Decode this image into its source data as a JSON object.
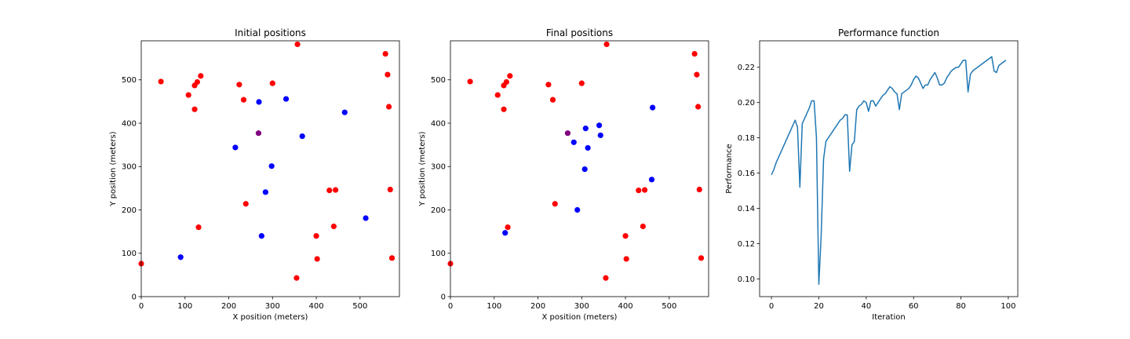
{
  "chart_data": [
    {
      "type": "scatter",
      "title": "Initial positions",
      "xlabel": "X position (meters)",
      "ylabel": "Y position (meters)",
      "xlim": [
        0,
        590
      ],
      "ylim": [
        0,
        590
      ],
      "xticks": [
        0,
        100,
        200,
        300,
        400,
        500
      ],
      "yticks": [
        0,
        100,
        200,
        300,
        400,
        500
      ],
      "grid": false,
      "colors": {
        "red": "#ff0000",
        "blue": "#0000ff",
        "purple": "#800080"
      },
      "series": [
        {
          "name": "red",
          "color": "#ff0000",
          "points": [
            [
              45,
              496
            ],
            [
              108,
              465
            ],
            [
              122,
              432
            ],
            [
              122,
              487
            ],
            [
              128,
              495
            ],
            [
              136,
              509
            ],
            [
              224,
              489
            ],
            [
              234,
              454
            ],
            [
              300,
              492
            ],
            [
              357,
              582
            ],
            [
              0,
              76
            ],
            [
              131,
              160
            ],
            [
              239,
              214
            ],
            [
              355,
              43
            ],
            [
              400,
              140
            ],
            [
              402,
              87
            ],
            [
              430,
              245
            ],
            [
              440,
              162
            ],
            [
              444,
              246
            ],
            [
              558,
              560
            ],
            [
              563,
              512
            ],
            [
              566,
              438
            ],
            [
              569,
              247
            ],
            [
              573,
              89
            ]
          ]
        },
        {
          "name": "blue",
          "color": "#0000ff",
          "points": [
            [
              269,
              449
            ],
            [
              331,
              456
            ],
            [
              465,
              425
            ],
            [
              368,
              370
            ],
            [
              215,
              344
            ],
            [
              298,
              301
            ],
            [
              284,
              241
            ],
            [
              513,
              181
            ],
            [
              275,
              140
            ],
            [
              90,
              91
            ]
          ]
        },
        {
          "name": "purple",
          "color": "#800080",
          "points": [
            [
              268,
              377
            ]
          ]
        }
      ]
    },
    {
      "type": "scatter",
      "title": "Final positions",
      "xlabel": "X position (meters)",
      "ylabel": "Y position (meters)",
      "xlim": [
        0,
        590
      ],
      "ylim": [
        0,
        590
      ],
      "xticks": [
        0,
        100,
        200,
        300,
        400,
        500
      ],
      "yticks": [
        0,
        100,
        200,
        300,
        400,
        500
      ],
      "grid": false,
      "series": [
        {
          "name": "red",
          "color": "#ff0000",
          "points": [
            [
              45,
              496
            ],
            [
              108,
              465
            ],
            [
              122,
              432
            ],
            [
              122,
              487
            ],
            [
              128,
              495
            ],
            [
              136,
              509
            ],
            [
              224,
              489
            ],
            [
              234,
              454
            ],
            [
              300,
              492
            ],
            [
              357,
              582
            ],
            [
              0,
              76
            ],
            [
              131,
              160
            ],
            [
              239,
              214
            ],
            [
              355,
              43
            ],
            [
              400,
              140
            ],
            [
              402,
              87
            ],
            [
              430,
              245
            ],
            [
              440,
              162
            ],
            [
              444,
              246
            ],
            [
              558,
              560
            ],
            [
              563,
              512
            ],
            [
              566,
              438
            ],
            [
              569,
              247
            ],
            [
              573,
              89
            ]
          ]
        },
        {
          "name": "blue",
          "color": "#0000ff",
          "points": [
            [
              462,
              436
            ],
            [
              340,
              395
            ],
            [
              309,
              388
            ],
            [
              343,
              372
            ],
            [
              282,
              356
            ],
            [
              314,
              343
            ],
            [
              307,
              294
            ],
            [
              460,
              270
            ],
            [
              290,
              200
            ],
            [
              125,
              147
            ]
          ]
        },
        {
          "name": "purple",
          "color": "#800080",
          "points": [
            [
              268,
              377
            ]
          ]
        }
      ]
    },
    {
      "type": "line",
      "title": "Performance function",
      "xlabel": "Iteration",
      "ylabel": "Performance",
      "xlim": [
        -5,
        104
      ],
      "ylim": [
        0.09,
        0.235
      ],
      "xticks": [
        0,
        20,
        40,
        60,
        80,
        100
      ],
      "yticks": [
        0.1,
        0.12,
        0.14,
        0.16,
        0.18,
        0.2,
        0.22
      ],
      "ytick_labels": [
        "0.10",
        "0.12",
        "0.14",
        "0.16",
        "0.18",
        "0.20",
        "0.22"
      ],
      "grid": false,
      "series": [
        {
          "name": "performance",
          "color": "#1f77b4",
          "x": [
            0,
            1,
            2,
            3,
            4,
            5,
            6,
            7,
            8,
            9,
            10,
            11,
            12,
            13,
            14,
            15,
            16,
            17,
            18,
            19,
            20,
            21,
            22,
            23,
            24,
            25,
            26,
            27,
            28,
            29,
            30,
            31,
            32,
            33,
            34,
            35,
            36,
            37,
            38,
            39,
            40,
            41,
            42,
            43,
            44,
            45,
            46,
            47,
            48,
            49,
            50,
            51,
            52,
            53,
            54,
            55,
            56,
            57,
            58,
            59,
            60,
            61,
            62,
            63,
            64,
            65,
            66,
            67,
            68,
            69,
            70,
            71,
            72,
            73,
            74,
            75,
            76,
            77,
            78,
            79,
            80,
            81,
            82,
            83,
            84,
            85,
            86,
            87,
            88,
            89,
            90,
            91,
            92,
            93,
            94,
            95,
            96,
            97,
            98,
            99
          ],
          "y": [
            0.159,
            0.162,
            0.166,
            0.169,
            0.172,
            0.175,
            0.178,
            0.181,
            0.184,
            0.187,
            0.19,
            0.186,
            0.152,
            0.188,
            0.191,
            0.194,
            0.197,
            0.201,
            0.201,
            0.18,
            0.097,
            0.125,
            0.168,
            0.178,
            0.18,
            0.182,
            0.184,
            0.186,
            0.188,
            0.19,
            0.191,
            0.193,
            0.193,
            0.161,
            0.176,
            0.178,
            0.196,
            0.198,
            0.199,
            0.201,
            0.2,
            0.195,
            0.201,
            0.201,
            0.198,
            0.2,
            0.202,
            0.204,
            0.205,
            0.207,
            0.209,
            0.208,
            0.206,
            0.205,
            0.196,
            0.205,
            0.206,
            0.207,
            0.208,
            0.21,
            0.213,
            0.215,
            0.214,
            0.211,
            0.208,
            0.21,
            0.21,
            0.213,
            0.215,
            0.217,
            0.214,
            0.21,
            0.21,
            0.211,
            0.214,
            0.216,
            0.218,
            0.219,
            0.22,
            0.22,
            0.222,
            0.224,
            0.224,
            0.206,
            0.216,
            0.218,
            0.219,
            0.22,
            0.221,
            0.222,
            0.223,
            0.224,
            0.225,
            0.226,
            0.218,
            0.217,
            0.221,
            0.222,
            0.223,
            0.224
          ]
        }
      ]
    }
  ]
}
